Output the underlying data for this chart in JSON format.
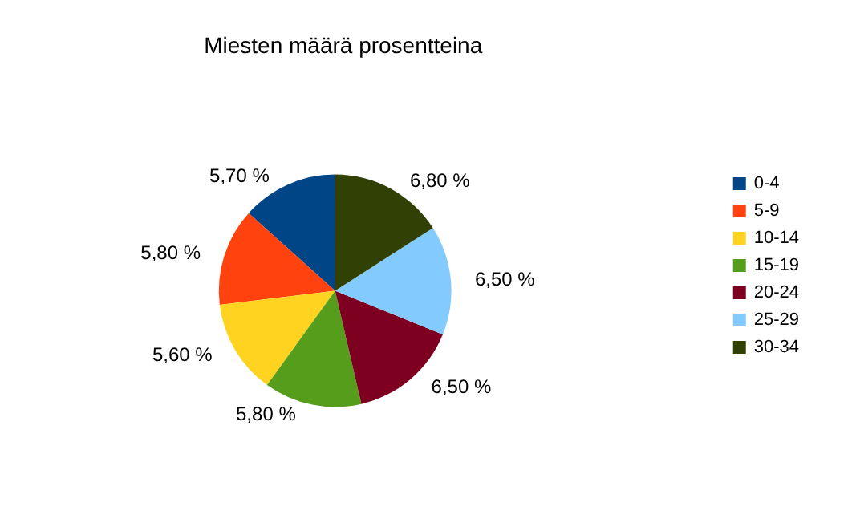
{
  "chart_data": {
    "type": "pie",
    "title": "Miesten määrä prosentteina",
    "categories": [
      "0-4",
      "5-9",
      "10-14",
      "15-19",
      "20-24",
      "25-29",
      "30-34"
    ],
    "values": [
      5.7,
      5.8,
      5.6,
      5.8,
      6.5,
      6.5,
      6.8
    ],
    "value_labels": [
      "5,70 %",
      "5,80 %",
      "5,60 %",
      "5,80 %",
      "6,50 %",
      "6,50 %",
      "6,80 %"
    ],
    "colors": [
      "#004586",
      "#ff420e",
      "#ffd320",
      "#579d1c",
      "#7e0021",
      "#83caff",
      "#314004"
    ],
    "legend": "right"
  }
}
